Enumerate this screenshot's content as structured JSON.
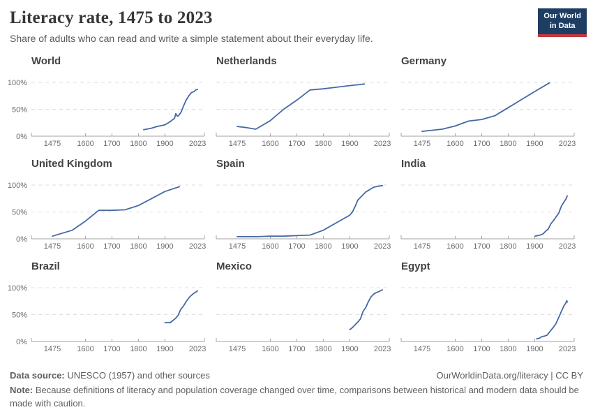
{
  "header": {
    "title": "Literacy rate, 1475 to 2023",
    "subtitle": "Share of adults who can read and write a simple statement about their everyday life.",
    "logo": {
      "line1": "Our World",
      "line2": "in Data"
    }
  },
  "axes": {
    "x_tick_years": [
      1475,
      1600,
      1700,
      1800,
      1900,
      2023
    ],
    "x_tick_labels": [
      "1475",
      "1600",
      "1700",
      "1800",
      "1900",
      "2023"
    ],
    "x_domain": [
      1396,
      2049
    ],
    "interior_tick_years": [
      1600,
      1700,
      1800,
      1900
    ],
    "y_ticks": [
      {
        "label": "0%",
        "value": 0
      },
      {
        "label": "50%",
        "value": 50
      },
      {
        "label": "100%",
        "value": 100
      }
    ],
    "y_gridlines": [
      50,
      100
    ],
    "ylim": [
      0,
      100
    ]
  },
  "colors": {
    "line": "#4668a3",
    "grid": "#dedede",
    "axis": "#a3a3a3",
    "tick_text": "#6b6b6b",
    "logo_bg": "#1d3d63",
    "logo_red": "#c4383f",
    "title_text": "#373737",
    "body_text": "#5c5c5c"
  },
  "chart_data": [
    {
      "type": "line",
      "title": "World",
      "xlabel": "",
      "ylabel": "",
      "ylim": [
        0,
        100
      ],
      "points": [
        [
          1820,
          12
        ],
        [
          1850,
          15
        ],
        [
          1870,
          18
        ],
        [
          1890,
          20
        ],
        [
          1900,
          21
        ],
        [
          1910,
          24
        ],
        [
          1920,
          27
        ],
        [
          1930,
          31
        ],
        [
          1936,
          33
        ],
        [
          1941,
          42
        ],
        [
          1947,
          37
        ],
        [
          1951,
          38
        ],
        [
          1957,
          42
        ],
        [
          1962,
          46
        ],
        [
          1970,
          56
        ],
        [
          1980,
          67
        ],
        [
          1990,
          75
        ],
        [
          2000,
          81
        ],
        [
          2010,
          83
        ],
        [
          2016,
          86
        ],
        [
          2023,
          87
        ]
      ]
    },
    {
      "type": "line",
      "title": "Netherlands",
      "xlabel": "",
      "ylabel": "",
      "ylim": [
        0,
        100
      ],
      "points": [
        [
          1475,
          18
        ],
        [
          1510,
          16
        ],
        [
          1545,
          13
        ],
        [
          1600,
          29
        ],
        [
          1650,
          50
        ],
        [
          1700,
          67
        ],
        [
          1750,
          86
        ],
        [
          1800,
          88
        ],
        [
          1850,
          91
        ],
        [
          1900,
          94
        ],
        [
          1955,
          97
        ]
      ]
    },
    {
      "type": "line",
      "title": "Germany",
      "xlabel": "",
      "ylabel": "",
      "ylim": [
        0,
        100
      ],
      "points": [
        [
          1475,
          9
        ],
        [
          1550,
          13
        ],
        [
          1600,
          19
        ],
        [
          1650,
          28
        ],
        [
          1700,
          31
        ],
        [
          1750,
          38
        ],
        [
          1800,
          53
        ],
        [
          1850,
          68
        ],
        [
          1900,
          83
        ],
        [
          1955,
          99
        ]
      ]
    },
    {
      "type": "line",
      "title": "United Kingdom",
      "xlabel": "",
      "ylabel": "",
      "ylim": [
        0,
        100
      ],
      "points": [
        [
          1475,
          5
        ],
        [
          1550,
          16
        ],
        [
          1600,
          33
        ],
        [
          1650,
          53
        ],
        [
          1700,
          53
        ],
        [
          1750,
          54
        ],
        [
          1800,
          62
        ],
        [
          1850,
          75
        ],
        [
          1900,
          88
        ],
        [
          1955,
          97
        ]
      ]
    },
    {
      "type": "line",
      "title": "Spain",
      "xlabel": "",
      "ylabel": "",
      "ylim": [
        0,
        100
      ],
      "points": [
        [
          1475,
          4
        ],
        [
          1550,
          4
        ],
        [
          1600,
          5
        ],
        [
          1650,
          5
        ],
        [
          1700,
          6
        ],
        [
          1750,
          7
        ],
        [
          1800,
          16
        ],
        [
          1850,
          30
        ],
        [
          1900,
          44
        ],
        [
          1910,
          50
        ],
        [
          1920,
          60
        ],
        [
          1930,
          72
        ],
        [
          1940,
          77
        ],
        [
          1950,
          82
        ],
        [
          1960,
          87
        ],
        [
          1970,
          90
        ],
        [
          1980,
          93
        ],
        [
          1990,
          96
        ],
        [
          2000,
          97
        ],
        [
          2010,
          98
        ],
        [
          2023,
          99
        ]
      ]
    },
    {
      "type": "line",
      "title": "India",
      "xlabel": "",
      "ylabel": "",
      "ylim": [
        0,
        100
      ],
      "points": [
        [
          1901,
          5
        ],
        [
          1911,
          6
        ],
        [
          1921,
          7
        ],
        [
          1931,
          9
        ],
        [
          1941,
          14
        ],
        [
          1951,
          18
        ],
        [
          1961,
          28
        ],
        [
          1971,
          34
        ],
        [
          1981,
          41
        ],
        [
          1991,
          48
        ],
        [
          2001,
          61
        ],
        [
          2011,
          69
        ],
        [
          2018,
          74
        ],
        [
          2023,
          80
        ]
      ]
    },
    {
      "type": "line",
      "title": "Brazil",
      "xlabel": "",
      "ylabel": "",
      "ylim": [
        0,
        100
      ],
      "points": [
        [
          1900,
          35
        ],
        [
          1920,
          35
        ],
        [
          1940,
          43
        ],
        [
          1950,
          49
        ],
        [
          1960,
          60
        ],
        [
          1970,
          66
        ],
        [
          1980,
          74
        ],
        [
          1990,
          81
        ],
        [
          2000,
          86
        ],
        [
          2010,
          90
        ],
        [
          2023,
          94
        ]
      ]
    },
    {
      "type": "line",
      "title": "Mexico",
      "xlabel": "",
      "ylabel": "",
      "ylim": [
        0,
        100
      ],
      "points": [
        [
          1900,
          22
        ],
        [
          1910,
          26
        ],
        [
          1920,
          31
        ],
        [
          1930,
          36
        ],
        [
          1940,
          42
        ],
        [
          1950,
          56
        ],
        [
          1960,
          63
        ],
        [
          1970,
          74
        ],
        [
          1980,
          83
        ],
        [
          1990,
          88
        ],
        [
          2000,
          91
        ],
        [
          2010,
          93
        ],
        [
          2023,
          96
        ]
      ]
    },
    {
      "type": "line",
      "title": "Egypt",
      "xlabel": "",
      "ylabel": "",
      "ylim": [
        0,
        100
      ],
      "points": [
        [
          1907,
          5
        ],
        [
          1917,
          6
        ],
        [
          1927,
          9
        ],
        [
          1937,
          10
        ],
        [
          1947,
          12
        ],
        [
          1960,
          20
        ],
        [
          1970,
          26
        ],
        [
          1980,
          33
        ],
        [
          1990,
          44
        ],
        [
          2000,
          55
        ],
        [
          2010,
          66
        ],
        [
          2017,
          71
        ],
        [
          2021,
          76
        ],
        [
          2023,
          73
        ]
      ]
    }
  ],
  "footer": {
    "datasource_label": "Data source:",
    "datasource_text": " UNESCO (1957) and other sources",
    "link_text": "OurWorldinData.org/literacy | CC BY",
    "note_label": "Note:",
    "note_text": " Because definitions of literacy and population coverage changed over time, comparisons between historical and modern data should be made with caution."
  }
}
